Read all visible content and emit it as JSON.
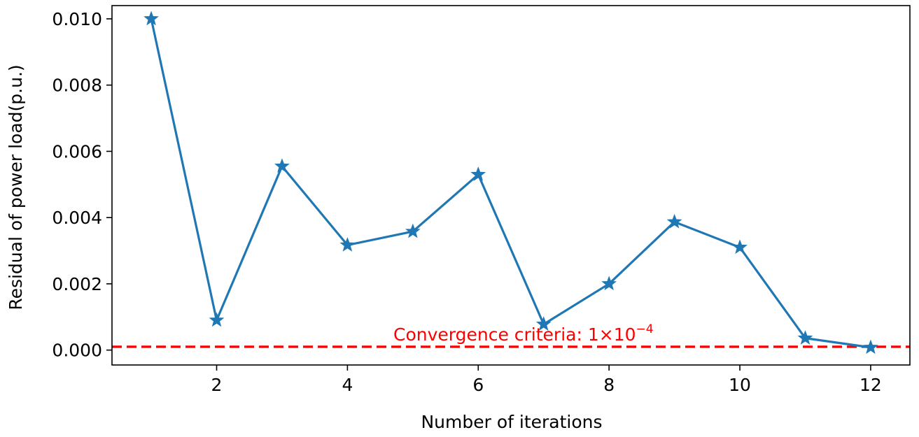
{
  "chart_data": {
    "type": "line",
    "title": "",
    "xlabel": "Number of iterations",
    "ylabel": "Residual of power load(p.u.)",
    "xlim": [
      0.4,
      12.6
    ],
    "ylim": [
      -0.00045,
      0.0104
    ],
    "x_ticks": [
      2,
      4,
      6,
      8,
      10,
      12
    ],
    "x_tick_labels": [
      "2",
      "4",
      "6",
      "8",
      "10",
      "12"
    ],
    "y_ticks": [
      0.0,
      0.002,
      0.004,
      0.006,
      0.008,
      0.01
    ],
    "y_tick_labels": [
      "0.000",
      "0.002",
      "0.004",
      "0.006",
      "0.008",
      "0.010"
    ],
    "grid": false,
    "legend": "none",
    "series": [
      {
        "x": [
          1,
          2,
          3,
          4,
          5,
          6,
          7,
          8,
          9,
          10,
          11,
          12
        ],
        "values": [
          0.01,
          0.0009,
          0.00555,
          0.00317,
          0.00358,
          0.0053,
          0.00078,
          0.002,
          0.00387,
          0.0031,
          0.00036,
          8e-05
        ],
        "color": "#1f77b4",
        "marker": "star"
      }
    ],
    "reference_line": {
      "y": 0.0001,
      "color": "#ff0000",
      "style": "dashed",
      "label_prefix": "Convergence criteria: 1×10",
      "label_exponent": "−4"
    }
  }
}
